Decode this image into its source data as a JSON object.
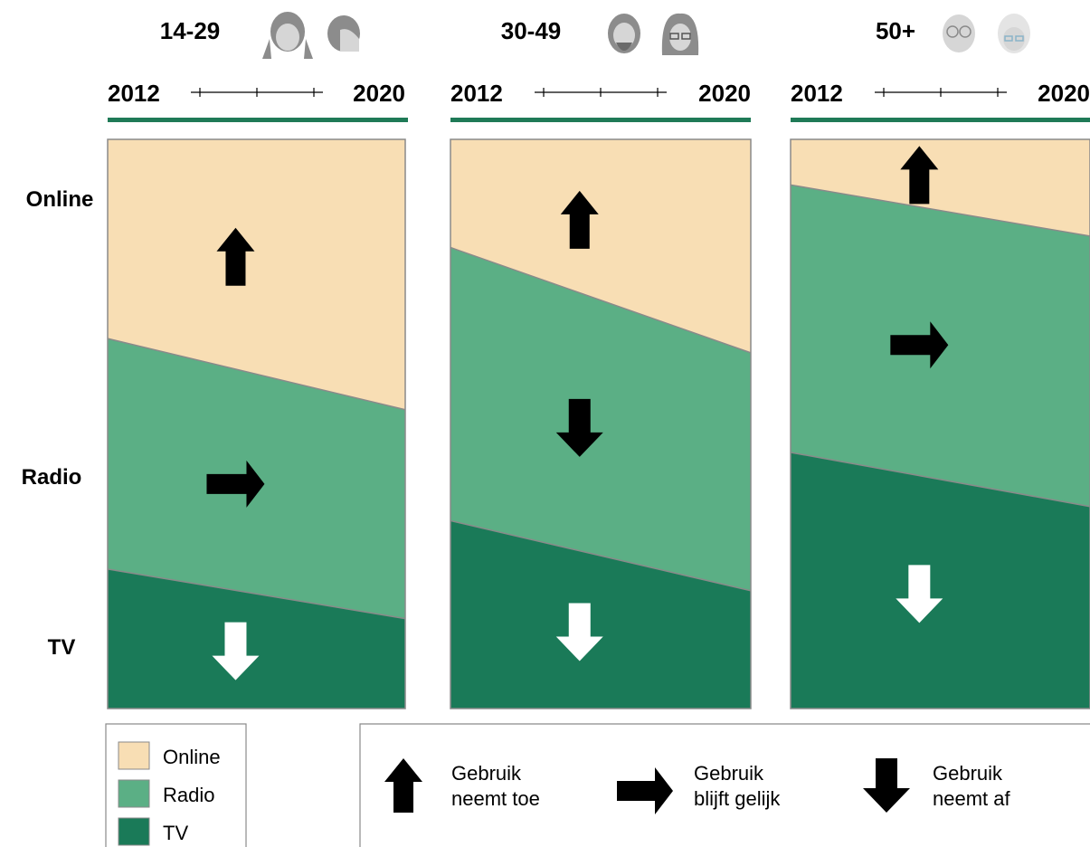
{
  "chart_data": {
    "type": "area",
    "row_labels": [
      "Online",
      "Radio",
      "TV"
    ],
    "panels": [
      {
        "age_group": "14-29",
        "start_year": "2012",
        "end_year": "2020",
        "online_share": [
          0.35,
          0.475
        ],
        "radio_share": [
          0.405,
          0.367
        ],
        "tv_share": [
          0.245,
          0.158
        ],
        "trends": {
          "online": "up",
          "radio": "same",
          "tv": "down"
        }
      },
      {
        "age_group": "30-49",
        "start_year": "2012",
        "end_year": "2020",
        "online_share": [
          0.19,
          0.375
        ],
        "radio_share": [
          0.48,
          0.418
        ],
        "tv_share": [
          0.33,
          0.207
        ],
        "trends": {
          "online": "up",
          "radio": "down",
          "tv": "down"
        }
      },
      {
        "age_group": "50+",
        "start_year": "2012",
        "end_year": "2020",
        "online_share": [
          0.08,
          0.17
        ],
        "radio_share": [
          0.47,
          0.475
        ],
        "tv_share": [
          0.45,
          0.355
        ],
        "trends": {
          "online": "up",
          "radio": "same",
          "tv": "down"
        }
      }
    ],
    "legend": [
      {
        "label": "Online",
        "color": "#f8deb4"
      },
      {
        "label": "Radio",
        "color": "#5baf85"
      },
      {
        "label": "TV",
        "color": "#1a7a58"
      }
    ],
    "arrow_legend": [
      {
        "direction": "up",
        "line1": "Gebruik",
        "line2": "neemt toe"
      },
      {
        "direction": "same",
        "line1": "Gebruik",
        "line2": "blijft gelijk"
      },
      {
        "direction": "down",
        "line1": "Gebruik",
        "line2": "neemt af"
      }
    ]
  },
  "colors": {
    "online": "#f8deb4",
    "radio": "#5baf85",
    "tv": "#1a7a58",
    "accent_line": "#1f7a57",
    "border": "#8a8a8a",
    "icon_gray": "#8c8c8c",
    "icon_light": "#d6d6d6"
  },
  "icons": {
    "14-29": [
      "girl-icon",
      "boy-icon"
    ],
    "30-49": [
      "bearded-man-icon",
      "woman-glasses-icon"
    ],
    "50+": [
      "elderly-man-icon",
      "elderly-woman-icon"
    ]
  }
}
